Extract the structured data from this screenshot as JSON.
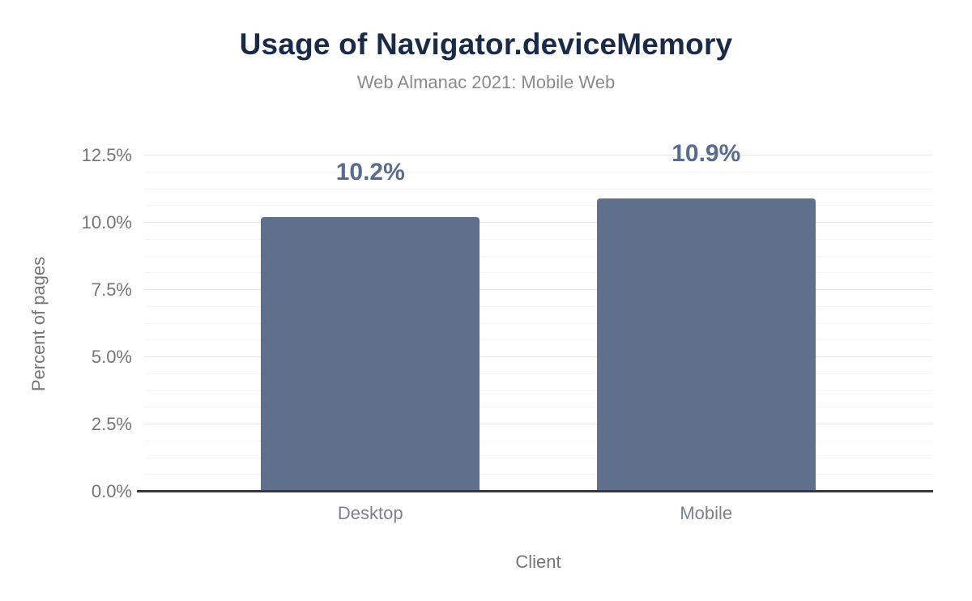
{
  "chart_data": {
    "type": "bar",
    "title": "Usage of Navigator.deviceMemory",
    "subtitle": "Web Almanac 2021: Mobile Web",
    "categories": [
      "Desktop",
      "Mobile"
    ],
    "values": [
      10.2,
      10.9
    ],
    "data_labels": [
      "10.2%",
      "10.9%"
    ],
    "xlabel": "Client",
    "ylabel": "Percent of pages",
    "ylim": [
      0,
      12.5
    ],
    "yticks": [
      0,
      2.5,
      5,
      7.5,
      10,
      12.5
    ],
    "ytick_labels": [
      "0.0%",
      "2.5%",
      "5.0%",
      "7.5%",
      "10.0%",
      "12.5%"
    ],
    "minor_gridline_step": 0.625,
    "grid": "horizontal, major and minor, no vertical",
    "legend": "none",
    "colors": {
      "bar": "#5f708c",
      "data_label": "#5a6c8e",
      "title": "#1a2b49",
      "subtitle": "#8a8a8a",
      "axis_text": "#757575",
      "category_text": "#7d8286",
      "axis_line": "#35393d",
      "major_grid": "#e7e7e7",
      "minor_grid": "#f4f4f4",
      "background": "#ffffff"
    }
  }
}
